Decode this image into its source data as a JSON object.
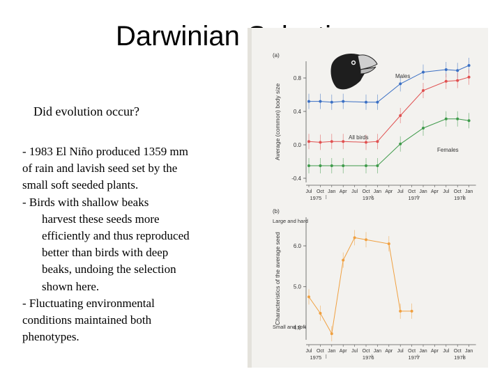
{
  "slide": {
    "title": "Darwinian Selection",
    "question": "Did evolution occur?",
    "paragraphs": [
      "- 1983 El Niño produced 1359 mm",
      "of rain and lavish seed set by the",
      "small soft seeded plants.",
      "-   Birds with shallow beaks",
      "harvest these seeds more",
      "efficiently and thus reproduced",
      "better than birds with deep",
      "beaks, undoing the selection",
      "shown here.",
      "- Fluctuating environmental",
      "conditions maintained both",
      "phenotypes."
    ]
  },
  "chart_data": [
    {
      "type": "line",
      "panel_label": "(a)",
      "ylabel": "Average (common) body size",
      "y_ticks": [
        -0.4,
        0.0,
        0.4,
        0.8
      ],
      "ylim": [
        -0.45,
        1.0
      ],
      "x_tick_labels": [
        "Jul",
        "Oct",
        "Jan",
        "Apr",
        "Jul",
        "Oct",
        "Jan",
        "Apr",
        "Jul",
        "Oct",
        "Jan",
        "Apr",
        "Jul",
        "Oct",
        "Jan"
      ],
      "year_labels": [
        "1975",
        "1976",
        "1977",
        "1978"
      ],
      "x": [
        0,
        1,
        2,
        3,
        5,
        6,
        8,
        10,
        12,
        13,
        14
      ],
      "series": [
        {
          "name": "Males",
          "color": "#3a6fc4",
          "values": [
            0.52,
            0.52,
            0.51,
            0.52,
            0.51,
            0.51,
            0.73,
            0.87,
            0.9,
            0.89,
            0.95
          ]
        },
        {
          "name": "All birds",
          "color": "#e05050",
          "values": [
            0.04,
            0.03,
            0.04,
            0.04,
            0.03,
            0.04,
            0.35,
            0.65,
            0.76,
            0.77,
            0.81
          ]
        },
        {
          "name": "Females",
          "color": "#3e9a4a",
          "values": [
            -0.25,
            -0.25,
            -0.25,
            -0.25,
            -0.25,
            -0.25,
            0.01,
            0.2,
            0.31,
            0.31,
            0.29
          ]
        }
      ]
    },
    {
      "type": "line",
      "panel_label": "(b)",
      "ylabel": "Characteristics of the average seed",
      "y_ticks": [
        4.0,
        5.0,
        6.0
      ],
      "ylim": [
        3.7,
        6.7
      ],
      "y_top_label": "Large and hard",
      "y_bottom_label": "Small and soft",
      "x_tick_labels": [
        "Jul",
        "Oct",
        "Jan",
        "Apr",
        "Jul",
        "Oct",
        "Jan",
        "Apr",
        "Jul",
        "Oct",
        "Jan",
        "Apr",
        "Jul",
        "Oct",
        "Jan"
      ],
      "year_labels": [
        "1975",
        "1976",
        "1977",
        "1978"
      ],
      "x": [
        0,
        1,
        2,
        3,
        4,
        5,
        7,
        8,
        9
      ],
      "series": [
        {
          "color": "#f0a040",
          "values": [
            4.75,
            4.35,
            3.85,
            5.65,
            6.2,
            6.15,
            6.05,
            4.4,
            4.4
          ]
        }
      ]
    }
  ]
}
